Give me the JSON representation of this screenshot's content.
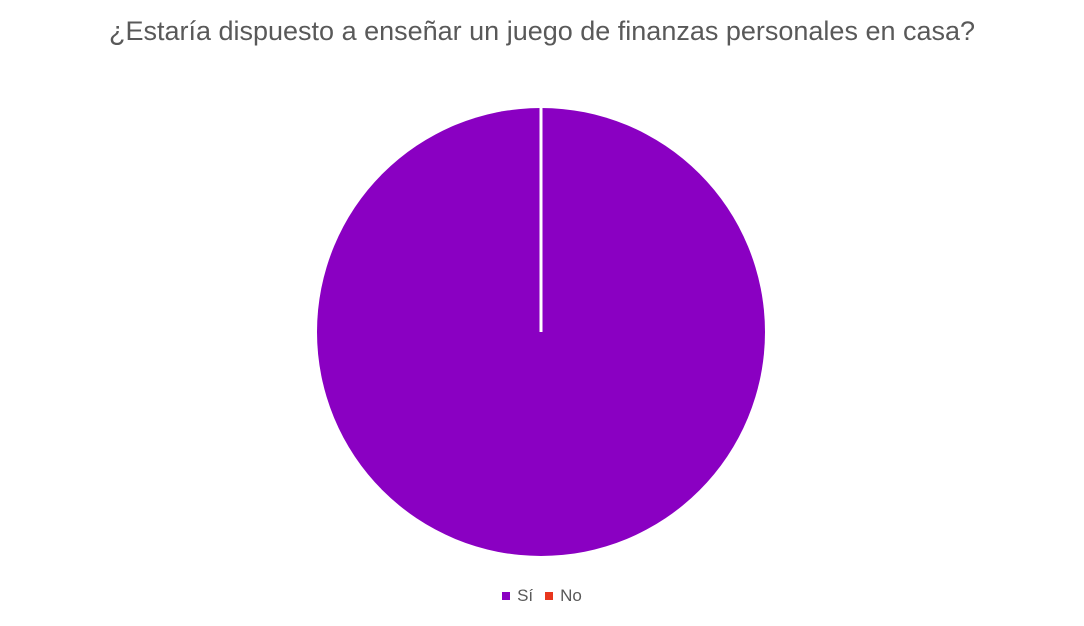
{
  "chart_data": {
    "type": "pie",
    "title": "¿Estaría dispuesto a enseñar un juego de finanzas personales en casa?",
    "categories": [
      "Sí",
      "No"
    ],
    "values": [
      100,
      0
    ],
    "colors": [
      "#8a00c2",
      "#e8361d"
    ],
    "legend": "bottom"
  }
}
